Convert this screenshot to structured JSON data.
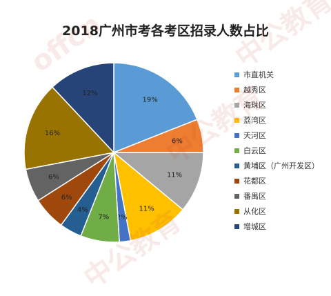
{
  "chart_data": {
    "type": "pie",
    "title": "2018广州市考各考区招录人数占比",
    "label_suffix": "%",
    "categories": [
      "市直机关",
      "越秀区",
      "海珠区",
      "荔湾区",
      "天河区",
      "白云区",
      "黄埔区（广州开发区）",
      "花都区",
      "番禺区",
      "从化区",
      "增城区"
    ],
    "values": [
      19,
      6,
      11,
      11,
      2,
      7,
      4,
      6,
      6,
      16,
      12
    ],
    "colors": [
      "#5b9bd5",
      "#ed7d31",
      "#a5a5a5",
      "#ffc000",
      "#4472c4",
      "#70ad47",
      "#255e91",
      "#9e480e",
      "#636363",
      "#997300",
      "#264478"
    ],
    "legend_position": "right",
    "start_angle_deg": 0,
    "direction": "clockwise"
  },
  "watermark": {
    "text": "中公教育",
    "brand": "offcn"
  }
}
